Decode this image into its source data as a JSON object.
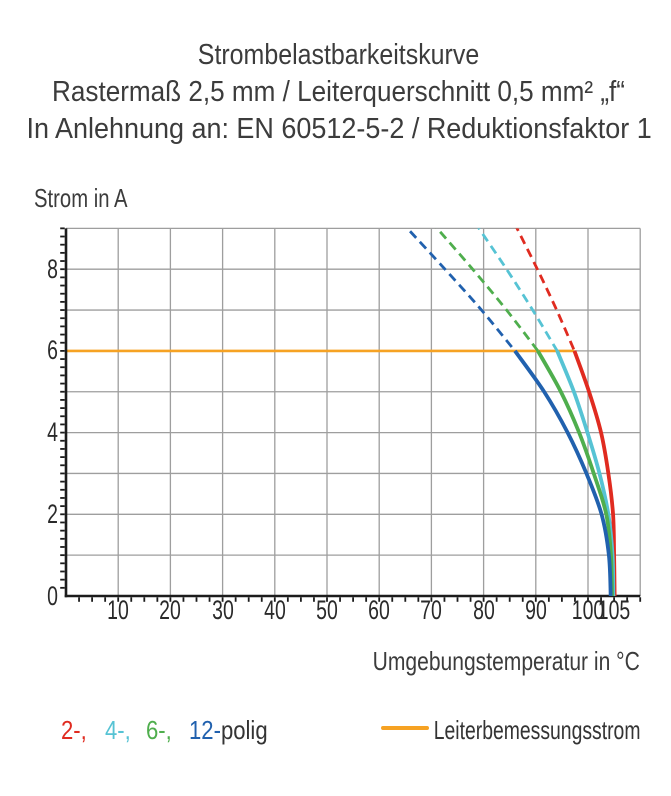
{
  "title": {
    "line1": "Strombelastbarkeitskurve",
    "line2": "Rastermaß 2,5 mm / Leiterquerschnitt 0,5 mm² „f“",
    "line3": "In Anlehnung an: EN 60512-5-2 / Reduktionsfaktor 1"
  },
  "colors": {
    "red_2pole": "#e02b20",
    "cyan_4pole": "#56c3d4",
    "green_6pole": "#4fae4d",
    "blue_12pole": "#2161ae",
    "orange_reference": "#f6a223",
    "gridline": "#9e9e9e",
    "axis": "#1c1c1c",
    "text": "#3c3c3c"
  },
  "chart_data": {
    "type": "line",
    "title": "Strombelastbarkeitskurve",
    "xlabel": "Umgebungstemperatur in °C",
    "ylabel": "Strom in A",
    "xlim": [
      0,
      110
    ],
    "ylim": [
      0,
      9
    ],
    "grid": true,
    "x_tick_labels": [
      "10",
      "20",
      "30",
      "40",
      "50",
      "60",
      "70",
      "80",
      "90",
      "100",
      "105"
    ],
    "x_tick_values": [
      10,
      20,
      30,
      40,
      50,
      60,
      70,
      80,
      90,
      100,
      105
    ],
    "x_gridline_values": [
      10,
      20,
      30,
      40,
      50,
      60,
      70,
      80,
      90,
      100,
      110
    ],
    "x_minor_tick_step": 2.5,
    "y_tick_labels": [
      "0",
      "2",
      "4",
      "6",
      "8"
    ],
    "y_tick_values": [
      0,
      2,
      4,
      6,
      8
    ],
    "y_gridline_values": [
      1,
      2,
      3,
      4,
      5,
      6,
      7,
      8,
      9
    ],
    "y_minor_tick_step": 0.2,
    "dashed_above_a": 6,
    "reference_line": {
      "label": "Leiterbemessungsstrom",
      "value_a": 6,
      "x_start_c": 0,
      "x_end_c": 97.4,
      "color": "#f6a223"
    },
    "series": [
      {
        "name": "2-polig",
        "color": "#e02b20",
        "points_c_a": [
          [
            86.4,
            9
          ],
          [
            90.3,
            8
          ],
          [
            94.0,
            7
          ],
          [
            97.4,
            6
          ],
          [
            100.2,
            5
          ],
          [
            102.5,
            4
          ],
          [
            103.9,
            3
          ],
          [
            104.8,
            2
          ],
          [
            105.0,
            1
          ],
          [
            105.1,
            0
          ]
        ]
      },
      {
        "name": "4-polig",
        "color": "#56c3d4",
        "points_c_a": [
          [
            79.1,
            9
          ],
          [
            84.4,
            8
          ],
          [
            89.4,
            7
          ],
          [
            94.1,
            6
          ],
          [
            97.3,
            5
          ],
          [
            99.9,
            4
          ],
          [
            102.2,
            3
          ],
          [
            103.9,
            2
          ],
          [
            104.7,
            1
          ],
          [
            104.85,
            0
          ]
        ]
      },
      {
        "name": "6-polig",
        "color": "#4fae4d",
        "points_c_a": [
          [
            71.1,
            9
          ],
          [
            77.9,
            8
          ],
          [
            84.4,
            7
          ],
          [
            90.4,
            6
          ],
          [
            94.8,
            5
          ],
          [
            98.3,
            4
          ],
          [
            101.1,
            3
          ],
          [
            103.5,
            2
          ],
          [
            104.4,
            1
          ],
          [
            104.6,
            0
          ]
        ]
      },
      {
        "name": "12-polig",
        "color": "#2161ae",
        "points_c_a": [
          [
            65.4,
            9
          ],
          [
            72.6,
            8
          ],
          [
            79.6,
            7
          ],
          [
            86.0,
            6
          ],
          [
            91.6,
            5
          ],
          [
            96.1,
            4
          ],
          [
            99.7,
            3
          ],
          [
            102.6,
            2
          ],
          [
            104.0,
            1
          ],
          [
            104.35,
            0
          ]
        ]
      }
    ]
  },
  "legend": {
    "pole_items": [
      {
        "label": "2-,",
        "color": "#e02b20",
        "x": 61
      },
      {
        "label": "4-,",
        "color": "#56c3d4",
        "x": 105
      },
      {
        "label": "6-,",
        "color": "#4fae4d",
        "x": 145.5
      },
      {
        "label": "12-",
        "color": "#2161ae",
        "x": 189
      }
    ],
    "polig_suffix": "polig",
    "reference_label": "Leiterbemessungsstrom"
  }
}
